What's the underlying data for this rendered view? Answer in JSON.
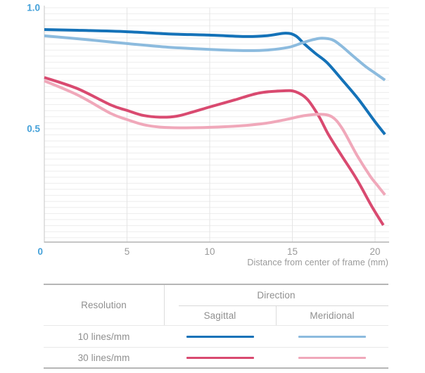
{
  "colors": {
    "accent_blue": "#45a1d9",
    "tick_gray": "#9a9a9a",
    "grid_minor": "#ededed",
    "grid_vertical": "#e5e5e5",
    "axis_line": "#c6c6c6",
    "baseline": "#b3b3b3",
    "s10_sagittal": "#1472b8",
    "s10_meridional": "#8cbbde",
    "s30_sagittal": "#d94a70",
    "s30_meridional": "#f0a8ba"
  },
  "chart_data": {
    "type": "line",
    "xlabel": "Distance from center of frame (mm)",
    "ylabel": "",
    "xlim": [
      0,
      20.85
    ],
    "ylim": [
      0.03,
      1.0
    ],
    "grid": true,
    "minor_gridline_step_y": 0.025,
    "legend_position": "bottom-table",
    "x_ticks": [
      {
        "label": "0",
        "value": 0,
        "accent": true
      },
      {
        "label": "5",
        "value": 5
      },
      {
        "label": "10",
        "value": 10
      },
      {
        "label": "15",
        "value": 15
      },
      {
        "label": "20",
        "value": 20
      }
    ],
    "y_ticks": [
      {
        "label": "1.0",
        "value": 1.0
      },
      {
        "label": "0.5",
        "value": 0.5
      }
    ],
    "series": [
      {
        "id": "s10-sagittal",
        "name": "10 lines/mm Sagittal",
        "resolution": "10 lines/mm",
        "direction": "Sagittal",
        "color": "#1472b8",
        "x": [
          0,
          2,
          5,
          7.5,
          10,
          12.2,
          13.5,
          14.6,
          15.2,
          15.7,
          16.4,
          17.1,
          18,
          19,
          20,
          20.6
        ],
        "y": [
          0.91,
          0.907,
          0.901,
          0.892,
          0.887,
          0.881,
          0.885,
          0.895,
          0.884,
          0.852,
          0.811,
          0.773,
          0.703,
          0.622,
          0.529,
          0.477
        ]
      },
      {
        "id": "s10-meridional",
        "name": "10 lines/mm Meridional",
        "resolution": "10 lines/mm",
        "direction": "Meridional",
        "color": "#8cbbde",
        "x": [
          0,
          2.5,
          5,
          7.5,
          10,
          12.2,
          13.6,
          14.8,
          15.6,
          16.3,
          16.8,
          17.4,
          17.9,
          18.7,
          19.4,
          20,
          20.6
        ],
        "y": [
          0.884,
          0.869,
          0.852,
          0.837,
          0.828,
          0.823,
          0.826,
          0.837,
          0.855,
          0.869,
          0.874,
          0.868,
          0.846,
          0.799,
          0.759,
          0.73,
          0.701
        ]
      },
      {
        "id": "s30-sagittal",
        "name": "30 lines/mm Sagittal",
        "resolution": "30 lines/mm",
        "direction": "Sagittal",
        "color": "#d94a70",
        "x": [
          0,
          2,
          4,
          5,
          6,
          7,
          8,
          9,
          10,
          11.5,
          13,
          14.5,
          15.2,
          15.9,
          16.6,
          17.2,
          18,
          18.9,
          19.8,
          20.5
        ],
        "y": [
          0.712,
          0.666,
          0.599,
          0.576,
          0.555,
          0.548,
          0.552,
          0.57,
          0.59,
          0.619,
          0.648,
          0.657,
          0.653,
          0.622,
          0.552,
          0.474,
          0.387,
          0.291,
          0.18,
          0.102
        ]
      },
      {
        "id": "s30-meridional",
        "name": "30 lines/mm Meridional",
        "resolution": "30 lines/mm",
        "direction": "Meridional",
        "color": "#f0a8ba",
        "x": [
          0,
          2,
          4,
          5,
          6,
          7,
          8.4,
          10,
          11.8,
          13.4,
          14.6,
          15.7,
          16.7,
          17.4,
          18,
          18.9,
          19.7,
          20.1,
          20.6
        ],
        "y": [
          0.698,
          0.64,
          0.564,
          0.538,
          0.517,
          0.507,
          0.504,
          0.506,
          0.512,
          0.523,
          0.538,
          0.554,
          0.56,
          0.549,
          0.503,
          0.392,
          0.305,
          0.27,
          0.227
        ]
      }
    ]
  },
  "table": {
    "resolution_header": "Resolution",
    "direction_header": "Direction",
    "direction_columns": [
      "Sagittal",
      "Meridional"
    ],
    "rows": [
      {
        "label": "10 lines/mm",
        "sagittal_color": "#1472b8",
        "meridional_color": "#8cbbde"
      },
      {
        "label": "30 lines/mm",
        "sagittal_color": "#d94a70",
        "meridional_color": "#f0a8ba"
      }
    ]
  }
}
